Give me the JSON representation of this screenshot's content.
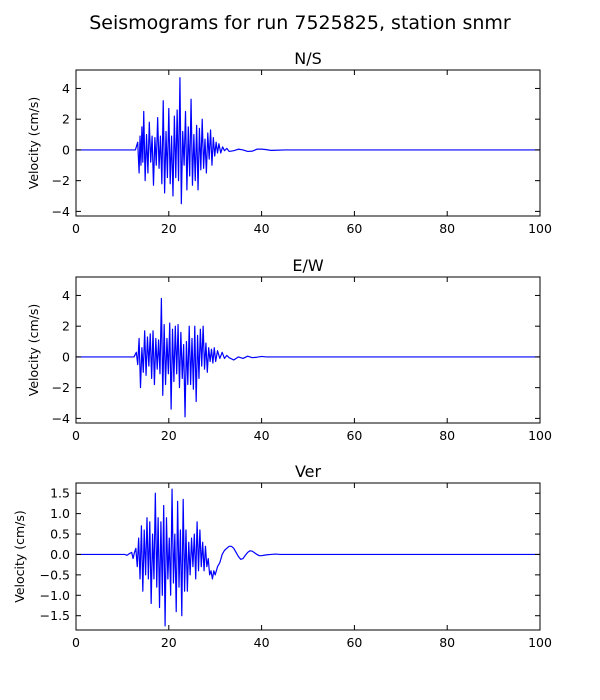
{
  "figure": {
    "title": "Seismograms for run 7525825, station snmr"
  },
  "chart_data": [
    {
      "type": "line",
      "title": "N/S",
      "xlabel": "",
      "ylabel": "Velocity (cm/s)",
      "xlim": [
        0,
        100
      ],
      "ylim": [
        -4.3,
        5.2
      ],
      "xticks": [
        0,
        20,
        40,
        60,
        80,
        100
      ],
      "yticks": [
        -4,
        -2,
        0,
        2,
        4
      ],
      "ytick_labels": [
        "−4",
        "−2",
        "0",
        "2",
        "4"
      ],
      "grid": false,
      "color": "#0000ff",
      "series": [
        {
          "x": [
            0,
            12.8,
            13.3,
            13.6,
            13.8,
            14.0,
            14.2,
            14.4,
            14.6,
            14.9,
            15.2,
            15.5,
            15.8,
            16.1,
            16.4,
            16.7,
            17.0,
            17.3,
            17.6,
            17.9,
            18.2,
            18.5,
            18.8,
            19.1,
            19.4,
            19.7,
            20.0,
            20.3,
            20.6,
            20.9,
            21.2,
            21.5,
            21.8,
            22.1,
            22.4,
            22.7,
            23.0,
            23.3,
            23.6,
            23.9,
            24.2,
            24.5,
            24.8,
            25.1,
            25.4,
            25.7,
            26.0,
            26.3,
            26.6,
            26.9,
            27.2,
            27.5,
            27.8,
            28.1,
            28.4,
            28.7,
            29.0,
            29.3,
            29.6,
            29.9,
            30.2,
            30.5,
            30.8,
            31.2,
            31.6,
            32.0,
            32.5,
            33.0,
            34.0,
            35.0,
            36.0,
            37.0,
            38.0,
            39.0,
            40.0,
            41.0,
            42.0,
            43.0,
            45.0,
            50.0,
            100.0
          ],
          "y": [
            0,
            0,
            0.5,
            -1.5,
            0.9,
            -1.0,
            1.5,
            -0.8,
            2.5,
            -2.0,
            1.0,
            -1.5,
            1.8,
            -0.8,
            0.9,
            -2.3,
            0.8,
            -1.0,
            2.1,
            -1.2,
            0.9,
            -2.2,
            3.2,
            -2.8,
            1.2,
            -1.8,
            2.7,
            -2.2,
            0.9,
            -3.0,
            2.2,
            -1.8,
            2.6,
            -2.0,
            4.7,
            -3.5,
            1.2,
            -1.0,
            2.5,
            -2.6,
            1.5,
            -1.7,
            3.3,
            -2.3,
            1.0,
            -2.0,
            1.6,
            -2.6,
            1.4,
            -1.3,
            2.0,
            -1.2,
            0.7,
            -1.5,
            1.1,
            -0.6,
            1.3,
            -1.0,
            0.8,
            -0.4,
            0.5,
            -0.2,
            0.4,
            -0.2,
            0.2,
            -0.05,
            0.1,
            -0.1,
            -0.05,
            0.05,
            0,
            -0.1,
            -0.08,
            0.05,
            0.05,
            0.02,
            -0.03,
            -0.02,
            0,
            0,
            0
          ]
        }
      ]
    },
    {
      "type": "line",
      "title": "E/W",
      "xlabel": "",
      "ylabel": "Velocity (cm/s)",
      "xlim": [
        0,
        100
      ],
      "ylim": [
        -4.3,
        5.2
      ],
      "xticks": [
        0,
        20,
        40,
        60,
        80,
        100
      ],
      "yticks": [
        -4,
        -2,
        0,
        2,
        4
      ],
      "ytick_labels": [
        "−4",
        "−2",
        "0",
        "2",
        "4"
      ],
      "grid": false,
      "color": "#0000ff",
      "series": [
        {
          "x": [
            0,
            12.5,
            13.0,
            13.3,
            13.6,
            13.9,
            14.2,
            14.5,
            14.8,
            15.1,
            15.4,
            15.7,
            16.0,
            16.3,
            16.6,
            16.9,
            17.2,
            17.5,
            17.8,
            18.1,
            18.4,
            18.7,
            19.0,
            19.3,
            19.6,
            19.9,
            20.2,
            20.5,
            20.8,
            21.1,
            21.4,
            21.7,
            22.0,
            22.3,
            22.6,
            22.9,
            23.2,
            23.5,
            23.8,
            24.1,
            24.4,
            24.7,
            25.0,
            25.3,
            25.6,
            25.9,
            26.2,
            26.5,
            26.8,
            27.1,
            27.4,
            27.7,
            28.0,
            28.3,
            28.6,
            28.9,
            29.2,
            29.5,
            29.8,
            30.1,
            30.5,
            31.0,
            31.5,
            32.0,
            32.5,
            33.0,
            34.0,
            35.0,
            36.0,
            37.0,
            38.0,
            39.0,
            40.0,
            41.0,
            42.0,
            44.0,
            50.0,
            100.0
          ],
          "y": [
            0,
            0,
            0.3,
            -0.5,
            1.2,
            -2.0,
            0.6,
            -1.0,
            1.7,
            -1.2,
            1.3,
            -0.6,
            1.5,
            -1.4,
            1.7,
            -1.8,
            1.2,
            -0.8,
            1.1,
            -1.1,
            3.8,
            -2.5,
            2.1,
            -1.8,
            1.2,
            -1.1,
            2.2,
            -3.4,
            1.8,
            -1.6,
            2.0,
            -1.1,
            2.1,
            -2.0,
            1.6,
            -1.4,
            0.8,
            -3.9,
            1.0,
            -1.8,
            2.0,
            -1.8,
            1.2,
            -2.1,
            2.0,
            -2.9,
            1.4,
            -1.4,
            1.8,
            -0.6,
            2.0,
            -0.8,
            0.9,
            -1.0,
            0.6,
            -0.3,
            0.5,
            -0.4,
            0.6,
            -0.3,
            0.4,
            -0.1,
            0.3,
            -0.1,
            0.1,
            -0.05,
            -0.2,
            0,
            -0.1,
            0.05,
            -0.05,
            -0.02,
            0.03,
            0,
            0,
            0,
            0,
            0
          ]
        }
      ]
    },
    {
      "type": "line",
      "title": "Ver",
      "xlabel": "",
      "ylabel": "Velocity (cm/s)",
      "xlim": [
        0,
        100
      ],
      "ylim": [
        -1.85,
        1.75
      ],
      "xticks": [
        0,
        20,
        40,
        60,
        80,
        100
      ],
      "yticks": [
        -1.5,
        -1.0,
        -0.5,
        0.0,
        0.5,
        1.0,
        1.5
      ],
      "ytick_labels": [
        "−1.5",
        "−1.0",
        "−0.5",
        "0.0",
        "0.5",
        "1.0",
        "1.5"
      ],
      "grid": false,
      "color": "#0000ff",
      "series": [
        {
          "x": [
            0,
            10.5,
            11.0,
            11.5,
            12.0,
            12.3,
            12.6,
            12.9,
            13.2,
            13.5,
            13.8,
            14.1,
            14.4,
            14.7,
            15.0,
            15.3,
            15.6,
            15.9,
            16.2,
            16.5,
            16.8,
            17.1,
            17.4,
            17.7,
            18.0,
            18.3,
            18.6,
            18.9,
            19.2,
            19.5,
            19.8,
            20.1,
            20.4,
            20.7,
            21.0,
            21.3,
            21.6,
            21.9,
            22.2,
            22.5,
            22.8,
            23.1,
            23.4,
            23.7,
            24.0,
            24.3,
            24.6,
            24.9,
            25.2,
            25.5,
            25.8,
            26.1,
            26.4,
            26.7,
            27.0,
            27.3,
            27.6,
            27.9,
            28.2,
            28.5,
            28.8,
            29.1,
            29.4,
            29.7,
            30.0,
            30.5,
            31.0,
            31.5,
            32.0,
            32.5,
            33.0,
            33.5,
            34.0,
            34.5,
            35.0,
            35.5,
            36.0,
            36.5,
            37.0,
            37.5,
            38.0,
            38.5,
            39.0,
            39.5,
            40.0,
            41.0,
            42.0,
            43.0,
            44.0,
            45.0,
            47.0,
            50.0,
            100.0
          ],
          "y": [
            0,
            0,
            -0.02,
            0.02,
            0.05,
            -0.1,
            0.05,
            0.15,
            -0.3,
            0.4,
            -0.6,
            0.7,
            -0.9,
            0.6,
            -0.5,
            0.9,
            -0.6,
            0.8,
            -1.2,
            0.5,
            -0.6,
            1.5,
            -0.8,
            0.9,
            -1.3,
            0.8,
            -1.0,
            1.2,
            -1.75,
            0.9,
            -0.6,
            0.4,
            -1.0,
            1.6,
            -0.7,
            0.5,
            -1.4,
            1.3,
            -0.8,
            0.6,
            -1.5,
            1.35,
            -0.9,
            0.6,
            -0.9,
            0.3,
            -0.5,
            0.4,
            -0.3,
            0.5,
            -0.6,
            0.8,
            -0.4,
            0.6,
            -0.3,
            0.3,
            -0.4,
            0.2,
            -0.3,
            -0.1,
            -0.5,
            -0.4,
            -0.6,
            -0.4,
            -0.5,
            -0.3,
            -0.2,
            0.0,
            0.1,
            0.15,
            0.2,
            0.2,
            0.15,
            0.05,
            -0.05,
            -0.12,
            -0.1,
            -0.02,
            0.05,
            0.09,
            0.08,
            0.04,
            0.0,
            -0.03,
            -0.03,
            -0.01,
            0.0,
            0.01,
            0.0,
            0,
            0,
            0,
            0
          ]
        }
      ]
    }
  ]
}
